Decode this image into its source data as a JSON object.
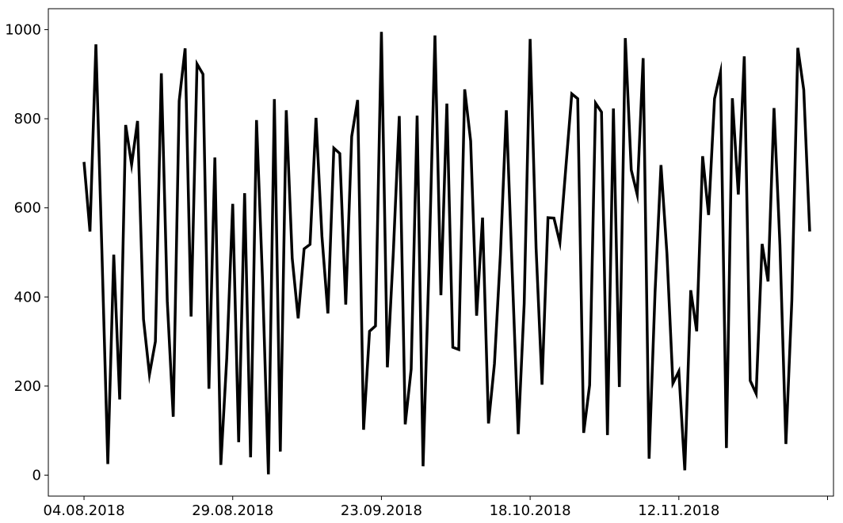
{
  "chart_data": {
    "type": "line",
    "title": "",
    "xlabel": "",
    "ylabel": "",
    "x_tick_labels": [
      "04.08.2018",
      "29.08.2018",
      "23.09.2018",
      "18.10.2018",
      "12.11.2018",
      ""
    ],
    "x_tick_dates": [
      "2018-08-04",
      "2018-08-29",
      "2018-09-23",
      "2018-10-18",
      "2018-11-12",
      "2018-12-07"
    ],
    "xlim": [
      "2018-07-29",
      "2018-12-08"
    ],
    "y_ticks": [
      0,
      200,
      400,
      600,
      800,
      1000
    ],
    "y_tick_labels": [
      "0",
      "200",
      "400",
      "600",
      "800",
      "1000"
    ],
    "ylim": [
      -47,
      1047
    ],
    "grid": false,
    "line_color": "#000000",
    "start_date": "2018-08-04",
    "series": [
      {
        "values": [
          703,
          547,
          967,
          505,
          25,
          495,
          170,
          786,
          697,
          795,
          350,
          226,
          300,
          902,
          390,
          131,
          840,
          958,
          356,
          923,
          900,
          194,
          713,
          23,
          263,
          609,
          74,
          633,
          40,
          797,
          442,
          2,
          844,
          53,
          819,
          487,
          352,
          508,
          518,
          802,
          536,
          363,
          734,
          722,
          383,
          760,
          842,
          102,
          323,
          335,
          995,
          242,
          500,
          806,
          114,
          238,
          807,
          20,
          470,
          987,
          404,
          834,
          287,
          282,
          866,
          750,
          358,
          578,
          116,
          250,
          495,
          819,
          452,
          92,
          385,
          979,
          510,
          203,
          578,
          577,
          522,
          690,
          856,
          845,
          95,
          202,
          835,
          815,
          90,
          823,
          198,
          981,
          685,
          630,
          936,
          37,
          410,
          696,
          497,
          206,
          233,
          11,
          415,
          323,
          716,
          584,
          845,
          904,
          61,
          846,
          630,
          940,
          212,
          183,
          519,
          435,
          824,
          516,
          70,
          393,
          959,
          865,
          547
        ]
      }
    ]
  }
}
